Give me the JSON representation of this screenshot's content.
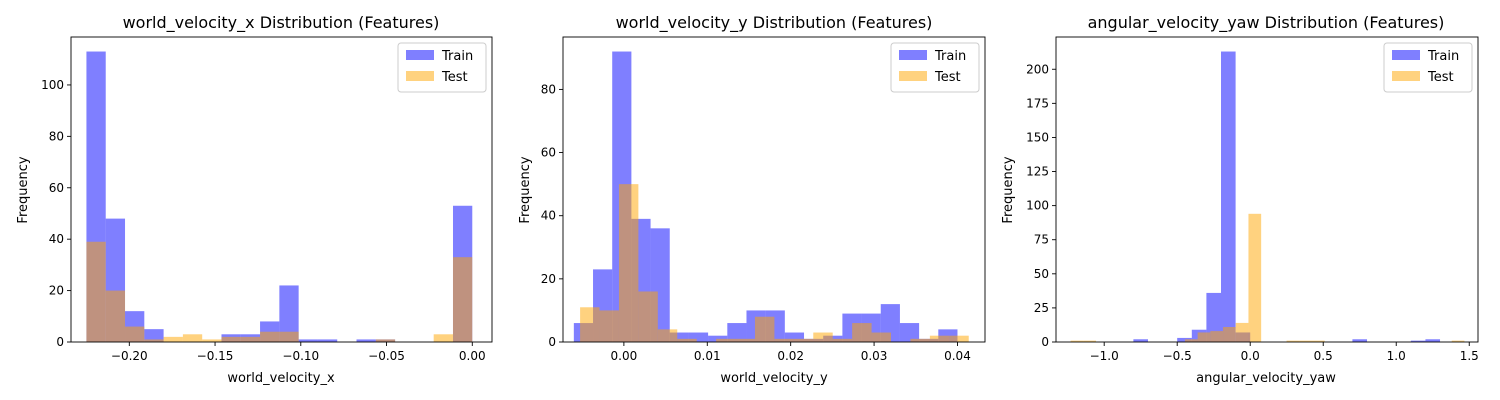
{
  "figure": {
    "background": "#ffffff",
    "train_color": "#0000ff",
    "test_color": "#ffa500",
    "overlap_color": "#b18173"
  },
  "chart_data": [
    {
      "type": "histogram",
      "title": "world_velocity_x Distribution (Features)",
      "xlabel": "world_velocity_x",
      "ylabel": "Frequency",
      "xlim": [
        -0.234,
        0.0115
      ],
      "ylim": [
        0,
        118.65
      ],
      "xticks": [
        -0.2,
        -0.15,
        -0.1,
        -0.05,
        0.0
      ],
      "xtick_labels": [
        "−0.20",
        "−0.15",
        "−0.10",
        "−0.05",
        "0.00"
      ],
      "yticks": [
        0,
        20,
        40,
        60,
        80,
        100
      ],
      "ytick_labels": [
        "0",
        "20",
        "40",
        "60",
        "80",
        "100"
      ],
      "legend": {
        "position": "top-right",
        "entries": [
          "Train",
          "Test"
        ]
      },
      "series": [
        {
          "name": "Train",
          "color": "#0000ff",
          "alpha": 0.5,
          "bin_start": -0.225,
          "bin_width": 0.01125,
          "values": [
            113,
            48,
            12,
            5,
            0,
            0,
            0,
            3,
            3,
            8,
            22,
            1,
            1,
            0,
            1,
            1,
            0,
            0,
            0,
            53
          ]
        },
        {
          "name": "Test",
          "color": "#ffa500",
          "alpha": 0.5,
          "bin_start": -0.225,
          "bin_width": 0.01125,
          "values": [
            39,
            20,
            6,
            1,
            2,
            3,
            1,
            2,
            2,
            4,
            4,
            0,
            0,
            0,
            0,
            1,
            0,
            0,
            3,
            33
          ]
        }
      ]
    },
    {
      "type": "histogram",
      "title": "world_velocity_y Distribution (Features)",
      "xlabel": "world_velocity_y",
      "ylabel": "Frequency",
      "xlim": [
        -0.0073,
        0.0433
      ],
      "ylim": [
        0,
        96.6
      ],
      "xticks": [
        0.0,
        0.01,
        0.02,
        0.03,
        0.04
      ],
      "xtick_labels": [
        "0.00",
        "0.01",
        "0.02",
        "0.03",
        "0.04"
      ],
      "yticks": [
        0,
        20,
        40,
        60,
        80
      ],
      "ytick_labels": [
        "0",
        "20",
        "40",
        "60",
        "80"
      ],
      "legend": {
        "position": "top-right",
        "entries": [
          "Train",
          "Test"
        ]
      },
      "series": [
        {
          "name": "Train",
          "color": "#0000ff",
          "alpha": 0.5,
          "bin_start": -0.006,
          "bin_width": 0.0023,
          "values": [
            6,
            23,
            92,
            39,
            36,
            3,
            3,
            2,
            6,
            10,
            10,
            3,
            1,
            2,
            9,
            9,
            12,
            6,
            1,
            4
          ]
        },
        {
          "name": "Test",
          "color": "#ffa500",
          "alpha": 0.5,
          "bin_start": -0.00525,
          "bin_width": 0.00233,
          "values": [
            11,
            10,
            50,
            16,
            4,
            1,
            0,
            1,
            1,
            8,
            1,
            1,
            3,
            1,
            6,
            3,
            0,
            1,
            2,
            2
          ]
        }
      ]
    },
    {
      "type": "histogram",
      "title": "angular_velocity_yaw Distribution (Features)",
      "xlabel": "angular_velocity_yaw",
      "ylabel": "Frequency",
      "xlim": [
        -1.33,
        1.56
      ],
      "ylim": [
        0,
        223.65
      ],
      "xticks": [
        -1.0,
        -0.5,
        0.0,
        0.5,
        1.0,
        1.5
      ],
      "xtick_labels": [
        "−1.0",
        "−0.5",
        "0.0",
        "0.5",
        "1.0",
        "1.5"
      ],
      "yticks": [
        0,
        25,
        50,
        75,
        100,
        125,
        150,
        175,
        200
      ],
      "ytick_labels": [
        "0",
        "25",
        "50",
        "75",
        "100",
        "125",
        "150",
        "175",
        "200"
      ],
      "legend": {
        "position": "top-right",
        "entries": [
          "Train",
          "Test"
        ]
      },
      "series": [
        {
          "name": "Train",
          "color": "#0000ff",
          "alpha": 0.5,
          "bin_start": -1.2,
          "bin_width": 0.1,
          "values": [
            0,
            0,
            0,
            0,
            2,
            0,
            0,
            3,
            9,
            36,
            213,
            7,
            0,
            0,
            0,
            0,
            0,
            0,
            0,
            2,
            0,
            0,
            0,
            1,
            2
          ]
        },
        {
          "name": "Test",
          "color": "#ffa500",
          "alpha": 0.5,
          "bin_start": -1.23,
          "bin_width": 0.087,
          "values": [
            1,
            1,
            0,
            0,
            0,
            0,
            0,
            0,
            0,
            2,
            7,
            8,
            11,
            14,
            94,
            0,
            0,
            1,
            1,
            1,
            0,
            0,
            0,
            0,
            0,
            0,
            0,
            0,
            0,
            0,
            1
          ]
        }
      ]
    }
  ]
}
